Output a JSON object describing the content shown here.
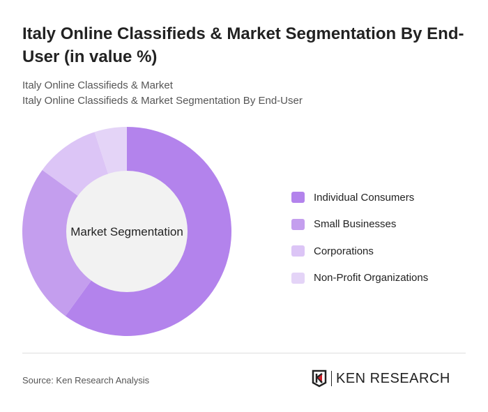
{
  "title": "Italy Online Classifieds & Market Segmentation By End-User (in value %)",
  "subtitle1": "Italy Online Classifieds & Market",
  "subtitle2": "Italy Online Classifieds & Market Segmentation By End-User",
  "source": "Source: Ken Research Analysis",
  "logo_text": "KEN RESEARCH",
  "chart_data": {
    "type": "pie",
    "variant": "donut",
    "center_label": "Market Segmentation",
    "categories": [
      "Individual Consumers",
      "Small Businesses",
      "Corporations",
      "Non-Profit Organizations"
    ],
    "colors": [
      "#b383ec",
      "#c49eee",
      "#dcc5f6",
      "#e4d4f7"
    ],
    "legend_position": "right"
  }
}
